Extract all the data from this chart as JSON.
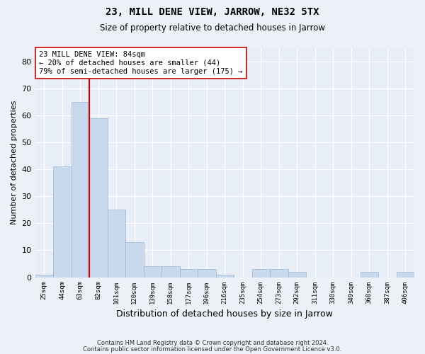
{
  "title": "23, MILL DENE VIEW, JARROW, NE32 5TX",
  "subtitle": "Size of property relative to detached houses in Jarrow",
  "xlabel": "Distribution of detached houses by size in Jarrow",
  "ylabel": "Number of detached properties",
  "footnote1": "Contains HM Land Registry data © Crown copyright and database right 2024.",
  "footnote2": "Contains public sector information licensed under the Open Government Licence v3.0.",
  "annotation_line1": "23 MILL DENE VIEW: 84sqm",
  "annotation_line2": "← 20% of detached houses are smaller (44)",
  "annotation_line3": "79% of semi-detached houses are larger (175) →",
  "bar_color": "#c9d9ed",
  "bar_edge_color": "#a0b8d8",
  "highlight_line_color": "#cc0000",
  "categories": [
    "25sqm",
    "44sqm",
    "63sqm",
    "82sqm",
    "101sqm",
    "120sqm",
    "139sqm",
    "158sqm",
    "177sqm",
    "196sqm",
    "216sqm",
    "235sqm",
    "254sqm",
    "273sqm",
    "292sqm",
    "311sqm",
    "330sqm",
    "349sqm",
    "368sqm",
    "387sqm",
    "406sqm"
  ],
  "values": [
    1,
    41,
    65,
    59,
    25,
    13,
    4,
    4,
    3,
    3,
    1,
    0,
    3,
    3,
    2,
    0,
    0,
    0,
    2,
    0,
    2
  ],
  "ylim": [
    0,
    85
  ],
  "yticks": [
    0,
    10,
    20,
    30,
    40,
    50,
    60,
    70,
    80
  ],
  "background_color": "#edf1f7",
  "plot_background": "#e8eef8"
}
